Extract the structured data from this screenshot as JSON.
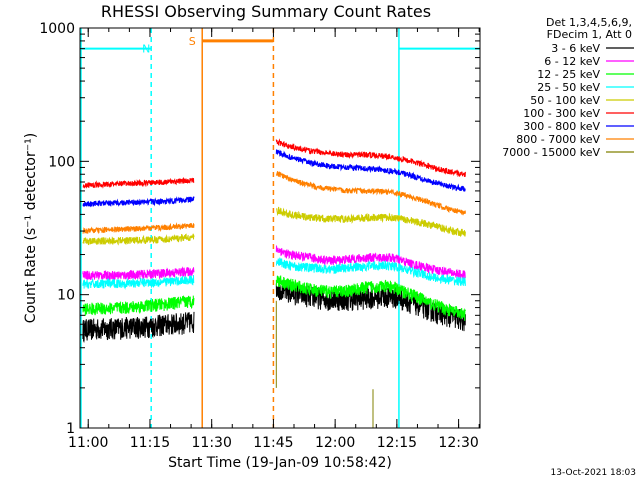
{
  "chart_data": {
    "type": "line",
    "title": "RHESSI Observing Summary Count Rates",
    "xlabel": "Start Time (19-Jan-09 10:58:42)",
    "ylabel": "Count Rate (s⁻¹ detector⁻¹)",
    "footer": "13-Oct-2021 18:03",
    "yscale": "log",
    "xlim_minutes": [
      -0.7,
      96.5
    ],
    "ylim": [
      1,
      1000
    ],
    "x_ticks": [
      {
        "t": 1.3,
        "label": "11:00"
      },
      {
        "t": 16.3,
        "label": "11:15"
      },
      {
        "t": 31.3,
        "label": "11:30"
      },
      {
        "t": 46.3,
        "label": "11:45"
      },
      {
        "t": 61.3,
        "label": "12:00"
      },
      {
        "t": 76.3,
        "label": "12:15"
      },
      {
        "t": 91.3,
        "label": "12:30"
      }
    ],
    "y_ticks": [
      {
        "v": 1,
        "label": "1"
      },
      {
        "v": 10,
        "label": "10"
      },
      {
        "v": 100,
        "label": "100"
      },
      {
        "v": 1000,
        "label": "1000"
      }
    ],
    "legend": {
      "position": "right",
      "header": [
        "Det 1,3,4,5,6,9,",
        "FDecim 1, Att 0"
      ]
    },
    "series": [
      {
        "name": "3 - 6 keV",
        "color": "#000000",
        "noise": 0.12,
        "segments": [
          {
            "x": [
              0,
              5,
              10,
              15,
              20,
              25,
              27
            ],
            "y": [
              5.5,
              5.6,
              5.7,
              5.8,
              6.0,
              6.2,
              6.3
            ]
          },
          {
            "x": [
              47,
              50,
              55,
              60,
              65,
              70,
              75,
              80,
              85,
              90,
              93
            ],
            "y": [
              11.5,
              10.5,
              9.8,
              9.3,
              9.3,
              9.6,
              9.8,
              8.8,
              7.6,
              6.8,
              6.4
            ]
          }
        ]
      },
      {
        "name": "6 - 12 keV",
        "color": "#ff00ff",
        "noise": 0.05,
        "segments": [
          {
            "x": [
              0,
              10,
              20,
              27
            ],
            "y": [
              14,
              14,
              14.5,
              15
            ]
          },
          {
            "x": [
              47,
              50,
              55,
              60,
              65,
              70,
              75,
              80,
              85,
              90,
              93
            ],
            "y": [
              22,
              20,
              19,
              18,
              18.5,
              19,
              19,
              17,
              15.5,
              14.5,
              14
            ]
          }
        ]
      },
      {
        "name": "12 - 25 keV",
        "color": "#00ff00",
        "noise": 0.07,
        "segments": [
          {
            "x": [
              0,
              10,
              20,
              27
            ],
            "y": [
              7.8,
              8.0,
              8.5,
              9.0
            ]
          },
          {
            "x": [
              47,
              50,
              55,
              60,
              65,
              70,
              75,
              80,
              85,
              90,
              93
            ],
            "y": [
              13,
              12,
              11,
              10.5,
              10.8,
              11.5,
              11.5,
              10,
              8.5,
              7.5,
              7
            ]
          }
        ]
      },
      {
        "name": "25 - 50 keV",
        "color": "#00ffff",
        "noise": 0.05,
        "segments": [
          {
            "x": [
              0,
              10,
              20,
              27
            ],
            "y": [
              12,
              12.2,
              12.5,
              13
            ]
          },
          {
            "x": [
              47,
              50,
              55,
              60,
              65,
              70,
              75,
              80,
              85,
              90,
              93
            ],
            "y": [
              18,
              16.5,
              16,
              15.5,
              16,
              16.5,
              16.5,
              15,
              13.5,
              12.8,
              12.5
            ]
          }
        ]
      },
      {
        "name": "50 - 100 keV",
        "color": "#cccc00",
        "noise": 0.04,
        "segments": [
          {
            "x": [
              0,
              10,
              20,
              27
            ],
            "y": [
              25,
              25.5,
              26,
              27
            ]
          },
          {
            "x": [
              47,
              50,
              55,
              60,
              65,
              70,
              75,
              80,
              85,
              90,
              93
            ],
            "y": [
              43,
              40,
              38,
              37,
              37,
              38,
              38,
              36,
              33,
              30,
              29
            ]
          }
        ]
      },
      {
        "name": "100 - 300 keV",
        "color": "#ff0000",
        "noise": 0.03,
        "segments": [
          {
            "x": [
              0,
              10,
              20,
              27
            ],
            "y": [
              66,
              68,
              70,
              72
            ]
          },
          {
            "x": [
              47,
              50,
              55,
              60,
              65,
              70,
              75,
              80,
              85,
              90,
              93
            ],
            "y": [
              140,
              130,
              120,
              115,
              112,
              112,
              108,
              100,
              90,
              82,
              80
            ]
          }
        ]
      },
      {
        "name": "300 - 800 keV",
        "color": "#0000ff",
        "noise": 0.03,
        "segments": [
          {
            "x": [
              0,
              10,
              20,
              27
            ],
            "y": [
              48,
              49,
              50,
              52
            ]
          },
          {
            "x": [
              47,
              50,
              55,
              60,
              65,
              70,
              75,
              80,
              85,
              90,
              93
            ],
            "y": [
              118,
              108,
              98,
              92,
              90,
              88,
              85,
              78,
              70,
              64,
              62
            ]
          }
        ]
      },
      {
        "name": "800 - 7000 keV",
        "color": "#ff8000",
        "noise": 0.03,
        "segments": [
          {
            "x": [
              0,
              10,
              20,
              27
            ],
            "y": [
              30,
              31,
              32,
              33
            ]
          },
          {
            "x": [
              47,
              50,
              55,
              60,
              65,
              70,
              75,
              80,
              85,
              90,
              93
            ],
            "y": [
              82,
              74,
              66,
              62,
              60,
              60,
              59,
              54,
              48,
              43,
              41
            ]
          }
        ]
      },
      {
        "name": "7000 - 15000 keV",
        "color": "#808000",
        "noise": 0,
        "segments": [
          {
            "x": [
              47,
              47.01
            ],
            "y": [
              2.0,
              9.0
            ]
          },
          {
            "x": [
              70.5,
              70.51
            ],
            "y": [
              1.0,
              1.95
            ]
          }
        ]
      }
    ],
    "markers": [
      {
        "type": "night",
        "label": "N",
        "color": "#00ffff",
        "spans": [
          {
            "start": -0.7,
            "end": 16.6
          },
          {
            "start": 76.8,
            "end": 96.5
          }
        ],
        "level": 700
      },
      {
        "type": "saa",
        "label": "S",
        "color": "#ff8000",
        "spans": [
          {
            "start": 29.0,
            "end": 46.3
          }
        ],
        "level": 800
      }
    ]
  }
}
